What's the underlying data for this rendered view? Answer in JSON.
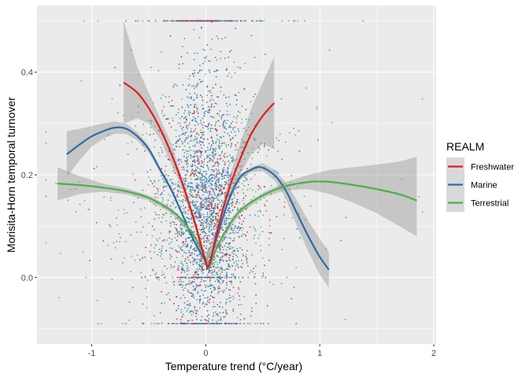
{
  "chart_data": {
    "type": "scatter",
    "title": "",
    "xlabel": "Temperature trend (°C/year)",
    "ylabel": "Morisita-Horn temporal turnover",
    "xlim": [
      -1.48,
      2.02
    ],
    "ylim": [
      -0.13,
      0.53
    ],
    "x_ticks": [
      -1,
      0,
      1,
      2
    ],
    "x_tick_labels": [
      "-1",
      "0",
      "1",
      "2"
    ],
    "y_ticks": [
      0.0,
      0.2,
      0.4
    ],
    "y_tick_labels": [
      "0.0",
      "0.2",
      "0.4"
    ],
    "grid": true,
    "legend": {
      "title": "REALM",
      "placement": "right",
      "entries": [
        "Freshwater",
        "Marine",
        "Terrestrial"
      ]
    },
    "series": [
      {
        "name": "Freshwater",
        "color": "#E41A1C",
        "smooth_line": {
          "x": [
            -0.72,
            -0.6,
            -0.5,
            -0.4,
            -0.3,
            -0.2,
            -0.1,
            -0.05,
            0.0,
            0.02,
            0.05,
            0.1,
            0.2,
            0.3,
            0.4,
            0.5,
            0.6
          ],
          "y": [
            0.38,
            0.36,
            0.33,
            0.29,
            0.24,
            0.18,
            0.11,
            0.07,
            0.03,
            0.02,
            0.04,
            0.09,
            0.17,
            0.23,
            0.28,
            0.315,
            0.34
          ]
        },
        "ribbon": {
          "x": [
            -0.72,
            -0.6,
            -0.5,
            -0.4,
            -0.3,
            -0.2,
            -0.1,
            0.0,
            0.1,
            0.2,
            0.3,
            0.4,
            0.5,
            0.6
          ],
          "lower": [
            0.3,
            0.31,
            0.3,
            0.27,
            0.22,
            0.17,
            0.1,
            0.02,
            0.08,
            0.15,
            0.2,
            0.24,
            0.26,
            0.25
          ],
          "upper": [
            0.5,
            0.41,
            0.36,
            0.31,
            0.26,
            0.19,
            0.12,
            0.04,
            0.1,
            0.19,
            0.26,
            0.33,
            0.38,
            0.43
          ]
        },
        "scatter": {
          "n": 520,
          "x_center": 0.02,
          "x_spread": 0.2,
          "y_center": 0.12,
          "y_spread": 0.12
        }
      },
      {
        "name": "Marine",
        "color": "#377EB8",
        "smooth_line": {
          "x": [
            -1.22,
            -1.1,
            -1.0,
            -0.9,
            -0.8,
            -0.7,
            -0.6,
            -0.5,
            -0.4,
            -0.3,
            -0.2,
            -0.1,
            0.0,
            0.02,
            0.1,
            0.2,
            0.3,
            0.4,
            0.48,
            0.6,
            0.7,
            0.8,
            0.9,
            1.0,
            1.08
          ],
          "y": [
            0.24,
            0.26,
            0.275,
            0.285,
            0.292,
            0.29,
            0.275,
            0.25,
            0.21,
            0.17,
            0.12,
            0.07,
            0.03,
            0.02,
            0.08,
            0.15,
            0.195,
            0.21,
            0.215,
            0.2,
            0.17,
            0.125,
            0.08,
            0.04,
            0.015
          ]
        },
        "ribbon": {
          "x": [
            -1.22,
            -1.1,
            -1.0,
            -0.9,
            -0.8,
            -0.7,
            -0.6,
            -0.5,
            -0.4,
            -0.3,
            -0.2,
            -0.1,
            0.0,
            0.1,
            0.2,
            0.3,
            0.4,
            0.5,
            0.6,
            0.7,
            0.8,
            0.9,
            1.0,
            1.08
          ],
          "lower": [
            0.195,
            0.23,
            0.255,
            0.27,
            0.28,
            0.28,
            0.267,
            0.243,
            0.205,
            0.165,
            0.117,
            0.067,
            0.026,
            0.077,
            0.145,
            0.19,
            0.205,
            0.207,
            0.19,
            0.155,
            0.1,
            0.05,
            0.005,
            -0.02
          ],
          "upper": [
            0.285,
            0.29,
            0.295,
            0.3,
            0.304,
            0.3,
            0.283,
            0.257,
            0.215,
            0.175,
            0.123,
            0.073,
            0.034,
            0.083,
            0.155,
            0.2,
            0.215,
            0.223,
            0.21,
            0.185,
            0.15,
            0.11,
            0.075,
            0.05
          ]
        },
        "scatter": {
          "n": 2600,
          "x_center": 0.0,
          "x_spread": 0.16,
          "y_center": 0.13,
          "y_spread": 0.13
        }
      },
      {
        "name": "Terrestrial",
        "color": "#4DAF4A",
        "smooth_line": {
          "x": [
            -1.3,
            -1.1,
            -0.9,
            -0.7,
            -0.5,
            -0.3,
            -0.2,
            -0.1,
            -0.05,
            0.0,
            0.03,
            0.1,
            0.2,
            0.3,
            0.5,
            0.7,
            0.9,
            1.0,
            1.1,
            1.3,
            1.5,
            1.7,
            1.85
          ],
          "y": [
            0.183,
            0.18,
            0.175,
            0.168,
            0.155,
            0.13,
            0.11,
            0.08,
            0.06,
            0.035,
            0.02,
            0.06,
            0.1,
            0.13,
            0.16,
            0.178,
            0.186,
            0.187,
            0.186,
            0.18,
            0.172,
            0.162,
            0.15
          ]
        },
        "ribbon": {
          "x": [
            -1.3,
            -1.1,
            -0.9,
            -0.7,
            -0.5,
            -0.3,
            -0.1,
            0.0,
            0.1,
            0.3,
            0.5,
            0.7,
            0.9,
            1.1,
            1.3,
            1.5,
            1.7,
            1.85
          ],
          "lower": [
            0.15,
            0.163,
            0.167,
            0.162,
            0.15,
            0.125,
            0.075,
            0.03,
            0.055,
            0.125,
            0.155,
            0.17,
            0.172,
            0.162,
            0.145,
            0.125,
            0.1,
            0.08
          ],
          "upper": [
            0.215,
            0.197,
            0.183,
            0.174,
            0.16,
            0.135,
            0.085,
            0.04,
            0.065,
            0.135,
            0.165,
            0.186,
            0.2,
            0.21,
            0.215,
            0.22,
            0.226,
            0.235
          ]
        },
        "scatter": {
          "n": 700,
          "x_center": -0.05,
          "x_spread": 0.35,
          "y_center": 0.14,
          "y_spread": 0.12
        }
      }
    ],
    "line_colors": {
      "Freshwater": "#E41A1C",
      "Marine": "#2C6DAA",
      "Terrestrial": "#4DAF4A"
    },
    "ribbon_color": "#999999",
    "panel_background": "#EBEBEB",
    "grid_color": "#FFFFFF"
  }
}
